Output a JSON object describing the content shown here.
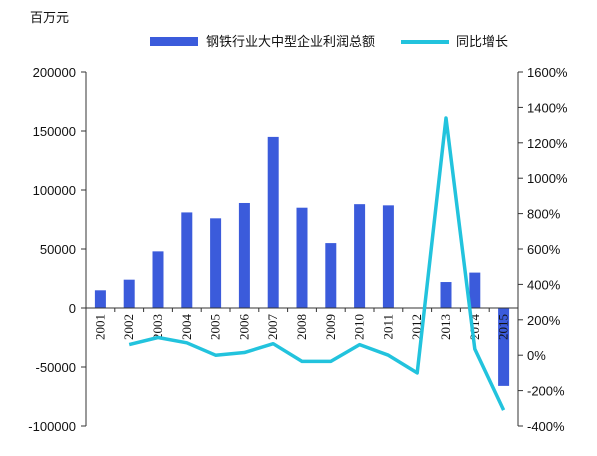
{
  "chart_data": {
    "type": "bar",
    "categories": [
      "2001",
      "2002",
      "2003",
      "2004",
      "2005",
      "2006",
      "2007",
      "2008",
      "2009",
      "2010",
      "2011",
      "2012",
      "2013",
      "2014",
      "2015"
    ],
    "series": [
      {
        "name": "钢铁行业大中型企业利润总额",
        "kind": "bar",
        "axis": "left",
        "color": "#3b5bdb",
        "values": [
          15000,
          24000,
          48000,
          81000,
          76000,
          89000,
          145000,
          85000,
          55000,
          88000,
          87000,
          0,
          22000,
          30000,
          -66000
        ]
      },
      {
        "name": "同比增长",
        "kind": "line",
        "axis": "right",
        "color": "#22c3dd",
        "values": [
          null,
          0.6,
          1.0,
          0.7,
          0.0,
          0.15,
          0.65,
          -0.35,
          -0.35,
          0.6,
          0.0,
          -1.0,
          13.4,
          0.35,
          -3.1
        ]
      }
    ],
    "y_left": {
      "min": -100000,
      "max": 200000,
      "ticks": [
        200000,
        150000,
        100000,
        50000,
        0,
        -50000,
        -100000
      ],
      "unit": "百万元"
    },
    "y_right": {
      "min": -4.0,
      "max": 16.0,
      "ticks": [
        "1600%",
        "1400%",
        "1200%",
        "1000%",
        "800%",
        "600%",
        "400%",
        "200%",
        "0%",
        "-200%",
        "-400%"
      ]
    },
    "legend_position": "top",
    "grid": false
  }
}
